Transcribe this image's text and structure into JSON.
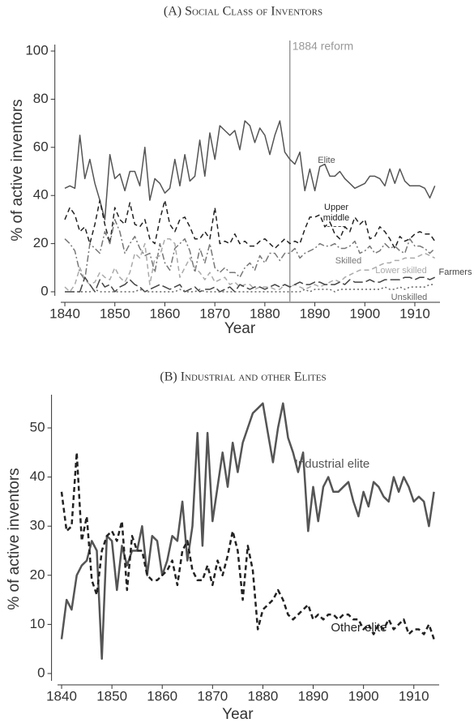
{
  "chart_data": [
    {
      "type": "line",
      "title": "(A) Social Class of Inventors",
      "y_label": "% of active inventors",
      "x_label": "Year",
      "annotation": {
        "x": 1885,
        "label": "1884 reform",
        "color": "#999999"
      },
      "xlim": [
        1838,
        1916
      ],
      "xticks": [
        1840,
        1850,
        1860,
        1870,
        1880,
        1890,
        1900,
        1910
      ],
      "ylim": [
        0,
        100
      ],
      "yticks": [
        0,
        20,
        40,
        60,
        80,
        100
      ],
      "x": [
        1840,
        1841,
        1842,
        1843,
        1844,
        1845,
        1846,
        1847,
        1848,
        1849,
        1850,
        1851,
        1852,
        1853,
        1854,
        1855,
        1856,
        1857,
        1858,
        1859,
        1860,
        1861,
        1862,
        1863,
        1864,
        1865,
        1866,
        1867,
        1868,
        1869,
        1870,
        1871,
        1872,
        1873,
        1874,
        1875,
        1876,
        1877,
        1878,
        1879,
        1880,
        1881,
        1882,
        1883,
        1884,
        1885,
        1886,
        1887,
        1888,
        1889,
        1890,
        1891,
        1892,
        1893,
        1894,
        1895,
        1896,
        1897,
        1898,
        1899,
        1900,
        1901,
        1902,
        1903,
        1904,
        1905,
        1906,
        1907,
        1908,
        1909,
        1910,
        1911,
        1912,
        1913,
        1914
      ],
      "series": [
        {
          "name": "Elite",
          "color": "#555555",
          "style": "solid",
          "values": [
            43,
            44,
            43,
            65,
            47,
            55,
            45,
            38,
            30,
            57,
            47,
            49,
            42,
            50,
            50,
            44,
            60,
            38,
            47,
            45,
            41,
            43,
            55,
            44,
            57,
            46,
            48,
            63,
            48,
            66,
            55,
            69,
            67,
            65,
            67,
            59,
            71,
            69,
            62,
            68,
            65,
            57,
            65,
            71,
            58,
            55,
            53,
            58,
            42,
            51,
            42,
            52,
            53,
            48,
            48,
            50,
            47,
            45,
            43,
            44,
            45,
            48,
            48,
            47,
            44,
            51,
            45,
            51,
            46,
            44,
            44,
            44,
            43,
            39,
            44
          ]
        },
        {
          "name": "Upper middle class",
          "color": "#222222",
          "style": "dashed",
          "values": [
            30,
            35,
            32,
            25,
            27,
            20,
            28,
            38,
            28,
            20,
            35,
            30,
            28,
            37,
            28,
            27,
            30,
            22,
            20,
            30,
            38,
            28,
            25,
            30,
            31,
            27,
            22,
            22,
            25,
            22,
            35,
            20,
            21,
            20,
            24,
            20,
            21,
            19,
            19,
            21,
            22,
            20,
            18,
            20,
            22,
            20,
            21,
            20,
            26,
            31,
            31,
            32,
            27,
            29,
            24,
            22,
            27,
            25,
            31,
            28,
            30,
            22,
            23,
            27,
            25,
            22,
            18,
            23,
            21,
            22,
            24,
            25,
            24,
            24,
            21
          ]
        },
        {
          "name": "Skilled",
          "color": "#777777",
          "style": "dashdot",
          "values": [
            22,
            20,
            17,
            8,
            5,
            20,
            18,
            16,
            25,
            20,
            30,
            25,
            16,
            20,
            23,
            18,
            15,
            16,
            8,
            20,
            12,
            9,
            18,
            20,
            22,
            17,
            8,
            18,
            12,
            20,
            10,
            8,
            10,
            8,
            8,
            6,
            10,
            12,
            9,
            15,
            12,
            16,
            16,
            13,
            16,
            16,
            18,
            14,
            16,
            17,
            18,
            20,
            19,
            19,
            20,
            18,
            18,
            19,
            21,
            16,
            17,
            19,
            16,
            17,
            20,
            18,
            19,
            17,
            16,
            22,
            19,
            19,
            18,
            16,
            18
          ]
        },
        {
          "name": "Lower skilled",
          "color": "#aaaaaa",
          "style": "dashed",
          "values": [
            2,
            0,
            3,
            10,
            5,
            3,
            4,
            8,
            6,
            5,
            10,
            6,
            4,
            8,
            16,
            14,
            20,
            3,
            14,
            15,
            22,
            22,
            20,
            6,
            10,
            14,
            10,
            8,
            5,
            8,
            4,
            5,
            6,
            3,
            4,
            2,
            3,
            3,
            1,
            2,
            2,
            2,
            1,
            1,
            3,
            2,
            3,
            2,
            1,
            2,
            3,
            2,
            3,
            4,
            5,
            4,
            6,
            7,
            8,
            9,
            9,
            9,
            10,
            11,
            12,
            12,
            13,
            13,
            14,
            14,
            14,
            15,
            16,
            15,
            14
          ]
        },
        {
          "name": "Farmers",
          "color": "#444444",
          "style": "longdash",
          "values": [
            0,
            0,
            0,
            0,
            6,
            3,
            0,
            5,
            2,
            3,
            0,
            2,
            3,
            5,
            3,
            2,
            0,
            1,
            2,
            3,
            2,
            1,
            2,
            3,
            0,
            1,
            2,
            0,
            1,
            1,
            2,
            0,
            1,
            2,
            0,
            3,
            2,
            1,
            2,
            2,
            1,
            2,
            3,
            2,
            3,
            2,
            3,
            4,
            3,
            3,
            4,
            4,
            3,
            3,
            3,
            4,
            3,
            5,
            4,
            4,
            4,
            5,
            4,
            4,
            5,
            5,
            5,
            5,
            6,
            6,
            5,
            6,
            6,
            5,
            6
          ]
        },
        {
          "name": "Unskilled",
          "color": "#666666",
          "style": "dotted",
          "values": [
            0,
            0,
            0,
            0,
            0,
            0,
            1,
            0,
            0,
            0,
            0,
            0,
            0,
            0,
            0,
            1,
            0,
            0,
            0,
            0,
            0,
            0,
            0,
            1,
            0,
            0,
            0,
            1,
            0,
            0,
            0,
            0,
            0,
            0,
            0,
            0,
            0,
            0,
            0,
            0,
            0,
            0,
            0,
            0,
            0,
            0,
            0,
            0,
            1,
            0,
            1,
            1,
            1,
            1,
            0,
            1,
            1,
            1,
            1,
            1,
            1,
            1,
            1,
            1,
            2,
            1,
            1,
            2,
            1,
            2,
            2,
            2,
            2,
            3,
            3
          ]
        }
      ]
    },
    {
      "type": "line",
      "title": "(B) Industrial and other Elites",
      "y_label": "% of active inventors",
      "x_label": "Year",
      "xlim": [
        1838,
        1916
      ],
      "xticks": [
        1840,
        1850,
        1860,
        1870,
        1880,
        1890,
        1900,
        1910
      ],
      "ylim": [
        0,
        55
      ],
      "yticks": [
        0,
        10,
        20,
        30,
        40,
        50
      ],
      "x": [
        1840,
        1841,
        1842,
        1843,
        1844,
        1845,
        1846,
        1847,
        1848,
        1849,
        1850,
        1851,
        1852,
        1853,
        1854,
        1855,
        1856,
        1857,
        1858,
        1859,
        1860,
        1861,
        1862,
        1863,
        1864,
        1865,
        1866,
        1867,
        1868,
        1869,
        1870,
        1871,
        1872,
        1873,
        1874,
        1875,
        1876,
        1877,
        1878,
        1879,
        1880,
        1881,
        1882,
        1883,
        1884,
        1885,
        1886,
        1887,
        1888,
        1889,
        1890,
        1891,
        1892,
        1893,
        1894,
        1895,
        1896,
        1897,
        1898,
        1899,
        1900,
        1901,
        1902,
        1903,
        1904,
        1905,
        1906,
        1907,
        1908,
        1909,
        1910,
        1911,
        1912,
        1913,
        1914
      ],
      "series": [
        {
          "name": "Industrial elite",
          "color": "#555555",
          "style": "solid",
          "values": [
            7,
            15,
            13,
            20,
            22,
            23,
            27,
            25,
            3,
            28,
            27,
            17,
            26,
            22,
            25,
            25,
            30,
            20,
            28,
            27,
            20,
            23,
            28,
            27,
            35,
            23,
            30,
            49,
            26,
            49,
            31,
            38,
            45,
            38,
            47,
            41,
            47,
            50,
            53,
            54,
            55,
            49,
            43,
            50,
            55,
            48,
            45,
            41,
            45,
            29,
            38,
            31,
            38,
            40,
            37,
            37,
            38,
            39,
            35,
            32,
            37,
            34,
            39,
            38,
            36,
            35,
            40,
            37,
            40,
            38,
            35,
            36,
            35,
            30,
            37
          ]
        },
        {
          "name": "Other elite",
          "color": "#222222",
          "style": "dashed",
          "values": [
            37,
            29,
            30,
            45,
            27,
            32,
            19,
            16,
            25,
            28,
            29,
            27,
            31,
            17,
            28,
            25,
            25,
            20,
            19,
            19,
            20,
            21,
            23,
            18,
            25,
            27,
            21,
            19,
            19,
            22,
            18,
            23,
            20,
            24,
            29,
            25,
            15,
            26,
            21,
            9,
            13,
            14,
            15,
            17,
            15,
            12,
            11,
            12,
            13,
            14,
            11,
            12,
            11,
            12,
            12,
            11,
            12,
            12,
            11,
            11,
            9,
            10,
            8,
            10,
            9,
            11,
            9,
            10,
            11,
            8,
            9,
            9,
            8,
            10,
            7
          ]
        }
      ]
    }
  ]
}
